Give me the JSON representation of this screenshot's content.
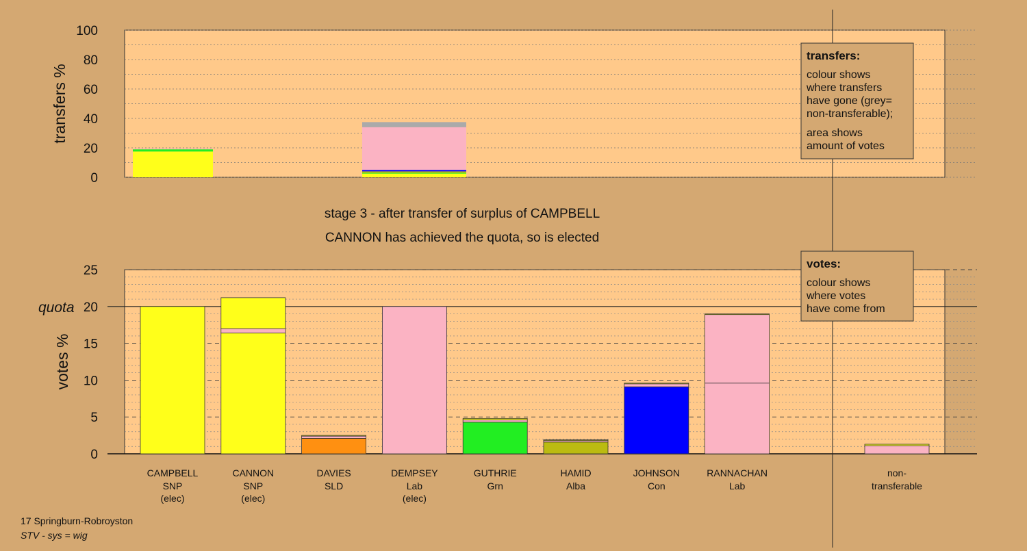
{
  "page": {
    "stage_line": "stage 3 - after transfer of surplus of CAMPBELL",
    "elected_line": "CANNON has achieved the quota, so is elected",
    "footer_ward": "17 Springburn-Robroyston",
    "footer_system": "STV - sys = wig",
    "colors": {
      "background": "#d4a872",
      "plot": "#ffc98a",
      "legend_box": "#d4a872"
    }
  },
  "chart_data": [
    {
      "id": "transfers",
      "type": "bar",
      "ylabel": "transfers %",
      "ylim": [
        0,
        100
      ],
      "yticks": [
        "0",
        "20",
        "40",
        "60",
        "80",
        "100"
      ],
      "legend": {
        "title": "transfers:",
        "lines": [
          "colour shows",
          "where transfers",
          "have gone (grey=",
          "non-transferable);",
          "area shows",
          "amount of votes"
        ]
      },
      "bars": [
        {
          "index": 0,
          "segments": [
            {
              "party": "SNP",
              "color": "#ffff1a",
              "value": 17.5
            },
            {
              "party": "Grn",
              "color": "#22ee22",
              "value": 1.5
            },
            {
              "party": "Lab",
              "color": "#fbb3c3",
              "value": 0.5
            }
          ]
        },
        {
          "index": 3,
          "segments": [
            {
              "party": "SNP",
              "color": "#ffff1a",
              "value": 2.5
            },
            {
              "party": "Grn",
              "color": "#22ee22",
              "value": 0.5
            },
            {
              "party": "Alba",
              "color": "#bbbb11",
              "value": 1.0
            },
            {
              "party": "Con",
              "color": "#0000ff",
              "value": 1.0
            },
            {
              "party": "Lab",
              "color": "#fbb3c3",
              "value": 29.0
            },
            {
              "party": "non-transferable",
              "color": "#aaaaaa",
              "value": 3.5
            }
          ]
        }
      ]
    },
    {
      "id": "votes",
      "type": "bar",
      "ylabel": "votes %",
      "ylim": [
        0,
        25
      ],
      "yticks": [
        "0",
        "5",
        "10",
        "15",
        "20",
        "25"
      ],
      "quota": 20,
      "quota_label": "quota",
      "legend": {
        "title": "votes:",
        "lines": [
          "colour shows",
          "where votes",
          "have come from"
        ]
      },
      "categories": [
        {
          "name": "CAMPBELL",
          "party": "SNP",
          "status": "(elec)"
        },
        {
          "name": "CANNON",
          "party": "SNP",
          "status": "(elec)"
        },
        {
          "name": "DAVIES",
          "party": "SLD",
          "status": ""
        },
        {
          "name": "DEMPSEY",
          "party": "Lab",
          "status": "(elec)"
        },
        {
          "name": "GUTHRIE",
          "party": "Grn",
          "status": ""
        },
        {
          "name": "HAMID",
          "party": "Alba",
          "status": ""
        },
        {
          "name": "JOHNSON",
          "party": "Con",
          "status": ""
        },
        {
          "name": "RANNACHAN",
          "party": "Lab",
          "status": ""
        }
      ],
      "nontransferable_label": [
        "non-",
        "transferable"
      ],
      "bars": [
        {
          "segments": [
            {
              "color": "#ffff1a",
              "value": 20.0
            }
          ]
        },
        {
          "segments": [
            {
              "color": "#ffff1a",
              "value": 16.4
            },
            {
              "color": "#fbb3c3",
              "value": 0.6
            },
            {
              "color": "#ffff1a",
              "value": 4.2
            }
          ]
        },
        {
          "segments": [
            {
              "color": "#ff9011",
              "value": 2.1
            },
            {
              "color": "#fbb3c3",
              "value": 0.3
            },
            {
              "color": "#ffff1a",
              "value": 0.1
            }
          ]
        },
        {
          "segments": [
            {
              "color": "#fbb3c3",
              "value": 20.0
            }
          ]
        },
        {
          "segments": [
            {
              "color": "#22ee22",
              "value": 4.3
            },
            {
              "color": "#fbb3c3",
              "value": 0.3
            },
            {
              "color": "#ffff1a",
              "value": 0.2
            }
          ]
        },
        {
          "segments": [
            {
              "color": "#bbbb11",
              "value": 1.6
            },
            {
              "color": "#fbb3c3",
              "value": 0.2
            },
            {
              "color": "#ffff1a",
              "value": 0.1
            }
          ]
        },
        {
          "segments": [
            {
              "color": "#0000ff",
              "value": 9.1
            },
            {
              "color": "#fbb3c3",
              "value": 0.4
            },
            {
              "color": "#ffff1a",
              "value": 0.1
            }
          ]
        },
        {
          "segments": [
            {
              "color": "#fbb3c3",
              "value": 9.6
            },
            {
              "color": "#fbb3c3",
              "value": 9.3
            },
            {
              "color": "#ffff1a",
              "value": 0.1
            }
          ]
        }
      ],
      "nontransferable": {
        "segments": [
          {
            "color": "#fbb3c3",
            "value": 1.1
          },
          {
            "color": "#ffff1a",
            "value": 0.2
          }
        ]
      }
    }
  ]
}
